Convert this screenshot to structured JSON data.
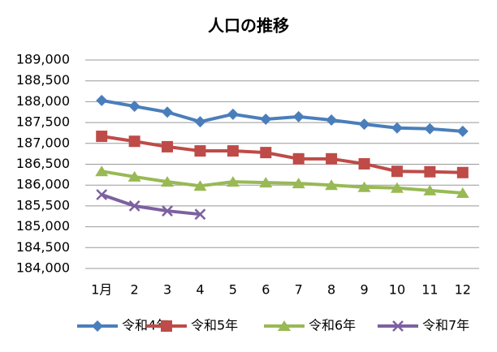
{
  "chart_data": {
    "type": "line",
    "title": "人口の推移",
    "categories": [
      "1月",
      "2",
      "3",
      "4",
      "5",
      "6",
      "7",
      "8",
      "9",
      "10",
      "11",
      "12"
    ],
    "series": [
      {
        "name": "令和4年",
        "color": "#4a7ebb",
        "marker": "diamond",
        "values": [
          188030,
          187890,
          187750,
          187520,
          187700,
          187580,
          187640,
          187560,
          187460,
          187370,
          187350,
          187290
        ]
      },
      {
        "name": "令和5年",
        "color": "#be4b48",
        "marker": "square",
        "values": [
          187170,
          187050,
          186920,
          186820,
          186820,
          186780,
          186630,
          186630,
          186510,
          186330,
          186320,
          186300
        ]
      },
      {
        "name": "令和6年",
        "color": "#98b954",
        "marker": "triangle",
        "values": [
          186330,
          186200,
          186080,
          185980,
          186080,
          186060,
          186040,
          186000,
          185950,
          185930,
          185870,
          185810
        ]
      },
      {
        "name": "令和7年",
        "color": "#7d60a0",
        "marker": "x",
        "values": [
          185770,
          185500,
          185380,
          185300,
          null,
          null,
          null,
          null,
          null,
          null,
          null,
          null
        ]
      }
    ],
    "ylim": [
      184000,
      189000
    ],
    "yticks": [
      {
        "value": 184000,
        "label": "184,000"
      },
      {
        "value": 184500,
        "label": "184,500"
      },
      {
        "value": 185000,
        "label": "185,000"
      },
      {
        "value": 185500,
        "label": "185,500"
      },
      {
        "value": 186000,
        "label": "186,000"
      },
      {
        "value": 186500,
        "label": "186,500"
      },
      {
        "value": 187000,
        "label": "187,000"
      },
      {
        "value": 187500,
        "label": "187,500"
      },
      {
        "value": 188000,
        "label": "188,000"
      },
      {
        "value": 188500,
        "label": "188,500"
      },
      {
        "value": 189000,
        "label": "189,000"
      }
    ],
    "grid": true,
    "legend": "bottom"
  }
}
